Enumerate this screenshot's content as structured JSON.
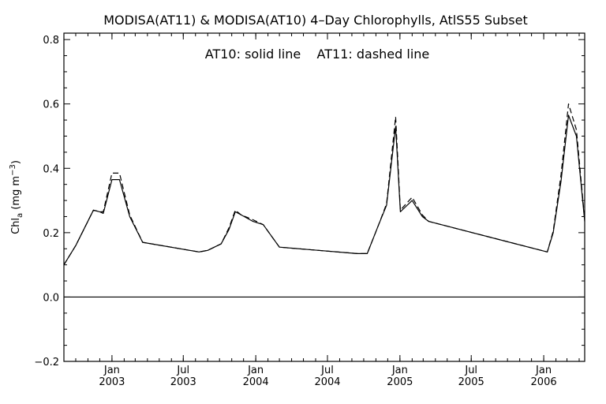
{
  "chart_data": {
    "type": "line",
    "title": "MODISA(AT11) & MODISA(AT10) 4–Day Chlorophylls, AtlS55 Subset",
    "annotation": "AT10: solid line    AT11: dashed line",
    "ylabel": {
      "base": "Chl",
      "sub": "a",
      "units": " (mg m",
      "sup": "−3",
      "close": ")"
    },
    "xlabel": "",
    "ylim": [
      -0.2,
      0.82
    ],
    "xlim": [
      "2002-09-01",
      "2006-04-15"
    ],
    "y_ticks": [
      -0.2,
      0.0,
      0.2,
      0.4,
      0.6,
      0.8
    ],
    "y_tick_labels": [
      "−0.2",
      "0.0",
      "0.2",
      "0.4",
      "0.6",
      "0.8"
    ],
    "x_ticks": [
      {
        "date": "2003-01-01",
        "month": "Jan",
        "year": "2003"
      },
      {
        "date": "2003-07-01",
        "month": "Jul",
        "year": "2003"
      },
      {
        "date": "2004-01-01",
        "month": "Jan",
        "year": "2004"
      },
      {
        "date": "2004-07-01",
        "month": "Jul",
        "year": "2004"
      },
      {
        "date": "2005-01-01",
        "month": "Jan",
        "year": "2005"
      },
      {
        "date": "2005-07-01",
        "month": "Jul",
        "year": "2005"
      },
      {
        "date": "2006-01-01",
        "month": "Jan",
        "year": "2006"
      }
    ],
    "zero_line": true,
    "grid": false,
    "series": [
      {
        "style": "solid",
        "x": [
          "2002-09-01",
          "2002-10-01",
          "2002-11-15",
          "2002-12-01",
          "2002-12-10",
          "2003-01-01",
          "2003-01-20",
          "2003-02-15",
          "2003-03-20",
          "2003-08-10",
          "2003-09-01",
          "2003-10-05",
          "2003-10-25",
          "2003-11-10",
          "2003-11-25",
          "2003-12-25",
          "2004-01-20",
          "2004-03-01",
          "2004-09-15",
          "2004-10-10",
          "2004-11-08",
          "2004-11-28",
          "2004-12-21",
          "2005-01-02",
          "2005-02-01",
          "2005-02-27",
          "2005-03-15",
          "2006-01-10",
          "2006-01-25",
          "2006-02-14",
          "2006-03-05",
          "2006-03-25",
          "2006-04-15"
        ],
        "values": [
          0.1,
          0.16,
          0.27,
          0.265,
          0.26,
          0.365,
          0.365,
          0.25,
          0.17,
          0.14,
          0.145,
          0.165,
          0.21,
          0.265,
          0.255,
          0.235,
          0.225,
          0.155,
          0.135,
          0.135,
          0.225,
          0.285,
          0.53,
          0.265,
          0.3,
          0.25,
          0.235,
          0.14,
          0.2,
          0.36,
          0.565,
          0.5,
          0.235
        ]
      },
      {
        "style": "dashed",
        "x": [
          "2002-09-01",
          "2002-10-01",
          "2002-11-15",
          "2002-12-01",
          "2002-12-10",
          "2003-01-01",
          "2003-01-20",
          "2003-02-15",
          "2003-03-20",
          "2003-08-10",
          "2003-09-01",
          "2003-10-05",
          "2003-10-25",
          "2003-11-10",
          "2003-11-25",
          "2003-12-25",
          "2004-01-20",
          "2004-03-01",
          "2004-09-15",
          "2004-10-10",
          "2004-11-08",
          "2004-11-28",
          "2004-12-21",
          "2005-01-02",
          "2005-02-01",
          "2005-02-27",
          "2005-03-15",
          "2006-01-10",
          "2006-01-25",
          "2006-02-14",
          "2006-03-05",
          "2006-03-25",
          "2006-04-15"
        ],
        "values": [
          0.1,
          0.16,
          0.27,
          0.265,
          0.265,
          0.385,
          0.385,
          0.255,
          0.17,
          0.14,
          0.145,
          0.165,
          0.215,
          0.27,
          0.255,
          0.24,
          0.225,
          0.155,
          0.135,
          0.135,
          0.225,
          0.29,
          0.56,
          0.27,
          0.31,
          0.255,
          0.235,
          0.14,
          0.205,
          0.38,
          0.6,
          0.52,
          0.24
        ]
      }
    ]
  }
}
